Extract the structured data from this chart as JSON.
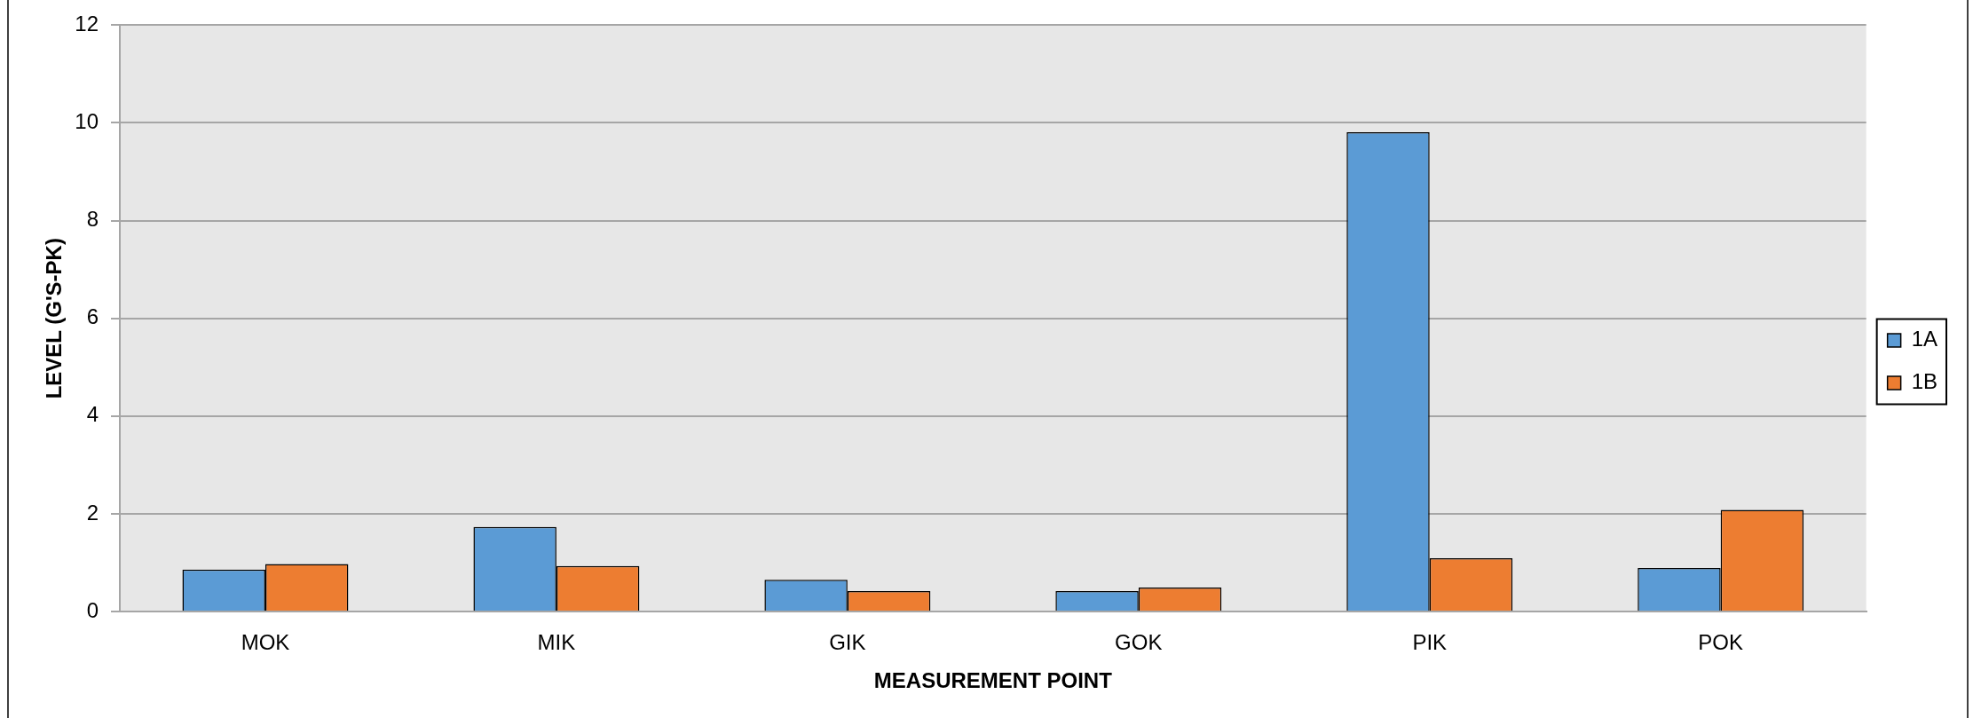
{
  "chart_data": {
    "type": "bar",
    "xlabel": "MEASUREMENT POINT",
    "ylabel": "LEVEL (G'S-PK)",
    "categories": [
      "MOK",
      "MIK",
      "GIK",
      "GOK",
      "PIK",
      "POK"
    ],
    "series": [
      {
        "name": "1A",
        "color": "#5b9bd5",
        "values": [
          0.86,
          1.73,
          0.65,
          0.42,
          9.81,
          0.89
        ]
      },
      {
        "name": "1B",
        "color": "#ed7d31",
        "values": [
          0.97,
          0.93,
          0.42,
          0.49,
          1.09,
          2.08
        ]
      }
    ],
    "ylim": [
      0,
      12
    ],
    "yticks": [
      0,
      2,
      4,
      6,
      8,
      10,
      12
    ],
    "grid": "y",
    "legend": "right"
  }
}
